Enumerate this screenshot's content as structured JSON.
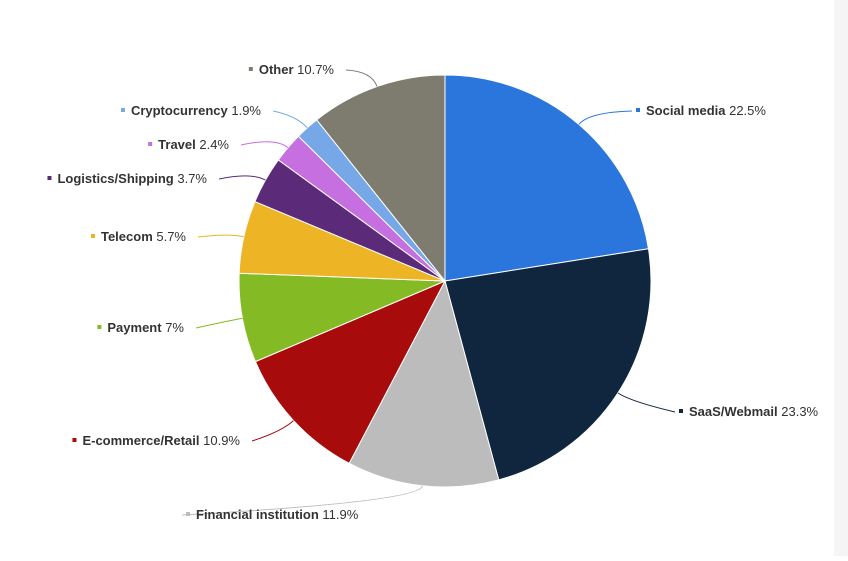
{
  "chart_data": {
    "type": "pie",
    "title": "",
    "slices": [
      {
        "label": "Social media",
        "value": 22.5,
        "display": "22.5%",
        "color": "#2a76dd"
      },
      {
        "label": "SaaS/Webmail",
        "value": 23.3,
        "display": "23.3%",
        "color": "#10263e"
      },
      {
        "label": "Financial institution",
        "value": 11.9,
        "display": "11.9%",
        "color": "#bcbcbc"
      },
      {
        "label": "E-commerce/Retail",
        "value": 10.9,
        "display": "10.9%",
        "color": "#a70b0c"
      },
      {
        "label": "Payment",
        "value": 7,
        "display": "7%",
        "color": "#84bb25"
      },
      {
        "label": "Telecom",
        "value": 5.7,
        "display": "5.7%",
        "color": "#edb526"
      },
      {
        "label": "Logistics/Shipping",
        "value": 3.7,
        "display": "3.7%",
        "color": "#5b2a78"
      },
      {
        "label": "Travel",
        "value": 2.4,
        "display": "2.4%",
        "color": "#c56fe0"
      },
      {
        "label": "Cryptocurrency",
        "value": 1.9,
        "display": "1.9%",
        "color": "#76a8e8"
      },
      {
        "label": "Other",
        "value": 10.7,
        "display": "10.7%",
        "color": "#7e7b6f"
      }
    ]
  }
}
